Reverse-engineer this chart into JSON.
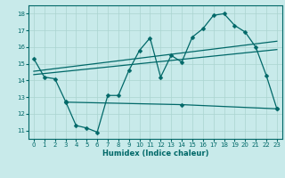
{
  "xlabel": "Humidex (Indice chaleur)",
  "xlim": [
    -0.5,
    23.5
  ],
  "ylim": [
    10.5,
    18.5
  ],
  "yticks": [
    11,
    12,
    13,
    14,
    15,
    16,
    17,
    18
  ],
  "xticks": [
    0,
    1,
    2,
    3,
    4,
    5,
    6,
    7,
    8,
    9,
    10,
    11,
    12,
    13,
    14,
    15,
    16,
    17,
    18,
    19,
    20,
    21,
    22,
    23
  ],
  "bg_color": "#c8eaea",
  "grid_color": "#aad4d0",
  "line_color": "#006868",
  "line1_x": [
    0,
    1,
    2,
    3,
    4,
    5,
    6,
    7,
    8,
    9,
    10,
    11,
    12,
    13,
    14,
    15,
    16,
    17,
    18,
    19,
    20,
    21,
    22,
    23
  ],
  "line1_y": [
    15.3,
    14.2,
    14.1,
    12.75,
    11.3,
    11.15,
    10.9,
    13.1,
    13.1,
    14.6,
    15.8,
    16.55,
    14.2,
    15.5,
    15.1,
    16.6,
    17.1,
    17.9,
    18.0,
    17.3,
    16.9,
    16.0,
    14.3,
    12.3
  ],
  "line2_x": [
    0,
    23
  ],
  "line2_y": [
    14.55,
    16.35
  ],
  "line3_x": [
    0,
    23
  ],
  "line3_y": [
    14.35,
    15.85
  ],
  "line4_x": [
    3,
    14,
    23
  ],
  "line4_y": [
    12.7,
    12.55,
    12.3
  ],
  "markersize": 2.5,
  "linewidth": 0.9
}
